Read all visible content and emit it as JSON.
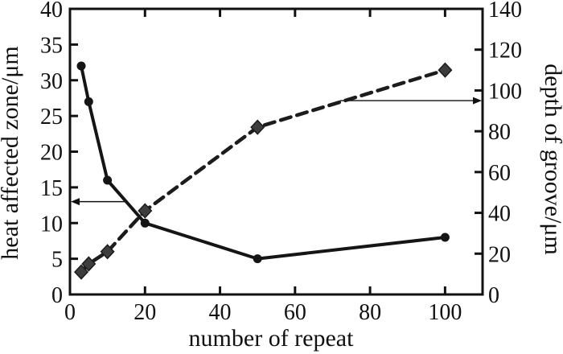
{
  "chart_data": {
    "type": "line",
    "title": "",
    "xlabel": "number of repeat",
    "ylabel_left": "heat affected zone/μm",
    "ylabel_right": "depth of groove/μm",
    "xlim": [
      0,
      110
    ],
    "x_ticks": [
      0,
      20,
      40,
      60,
      80,
      100
    ],
    "ylim_left": [
      0,
      40
    ],
    "y_ticks_left": [
      0,
      5,
      10,
      15,
      20,
      25,
      30,
      35,
      40
    ],
    "ylim_right": [
      0,
      140
    ],
    "y_ticks_right": [
      0,
      20,
      40,
      60,
      80,
      100,
      120,
      140
    ],
    "grid": false,
    "legend_position": "none",
    "series": [
      {
        "name": "heat affected zone",
        "axis": "left",
        "line_style": "solid",
        "marker": "circle",
        "color": "#151515",
        "x": [
          3,
          5,
          10,
          20,
          50,
          100
        ],
        "y": [
          32,
          27,
          16,
          10,
          5,
          8
        ]
      },
      {
        "name": "depth of groove",
        "axis": "right",
        "line_style": "dashed",
        "marker": "diamond",
        "color": "#1c1c1c",
        "marker_fill": "#3d3d3d",
        "x": [
          3,
          5,
          10,
          20,
          50,
          100
        ],
        "y": [
          11,
          15,
          21,
          41,
          82,
          110
        ]
      }
    ],
    "annotations": [
      {
        "type": "arrow",
        "axis": "left",
        "y": 13,
        "x_start": 15,
        "x_end": 0,
        "direction": "left"
      },
      {
        "type": "arrow",
        "axis": "right",
        "y": 95,
        "x_start": 72,
        "x_end": 110,
        "direction": "right"
      }
    ],
    "colors": {
      "axis": "#111111",
      "background": "#ffffff"
    }
  }
}
